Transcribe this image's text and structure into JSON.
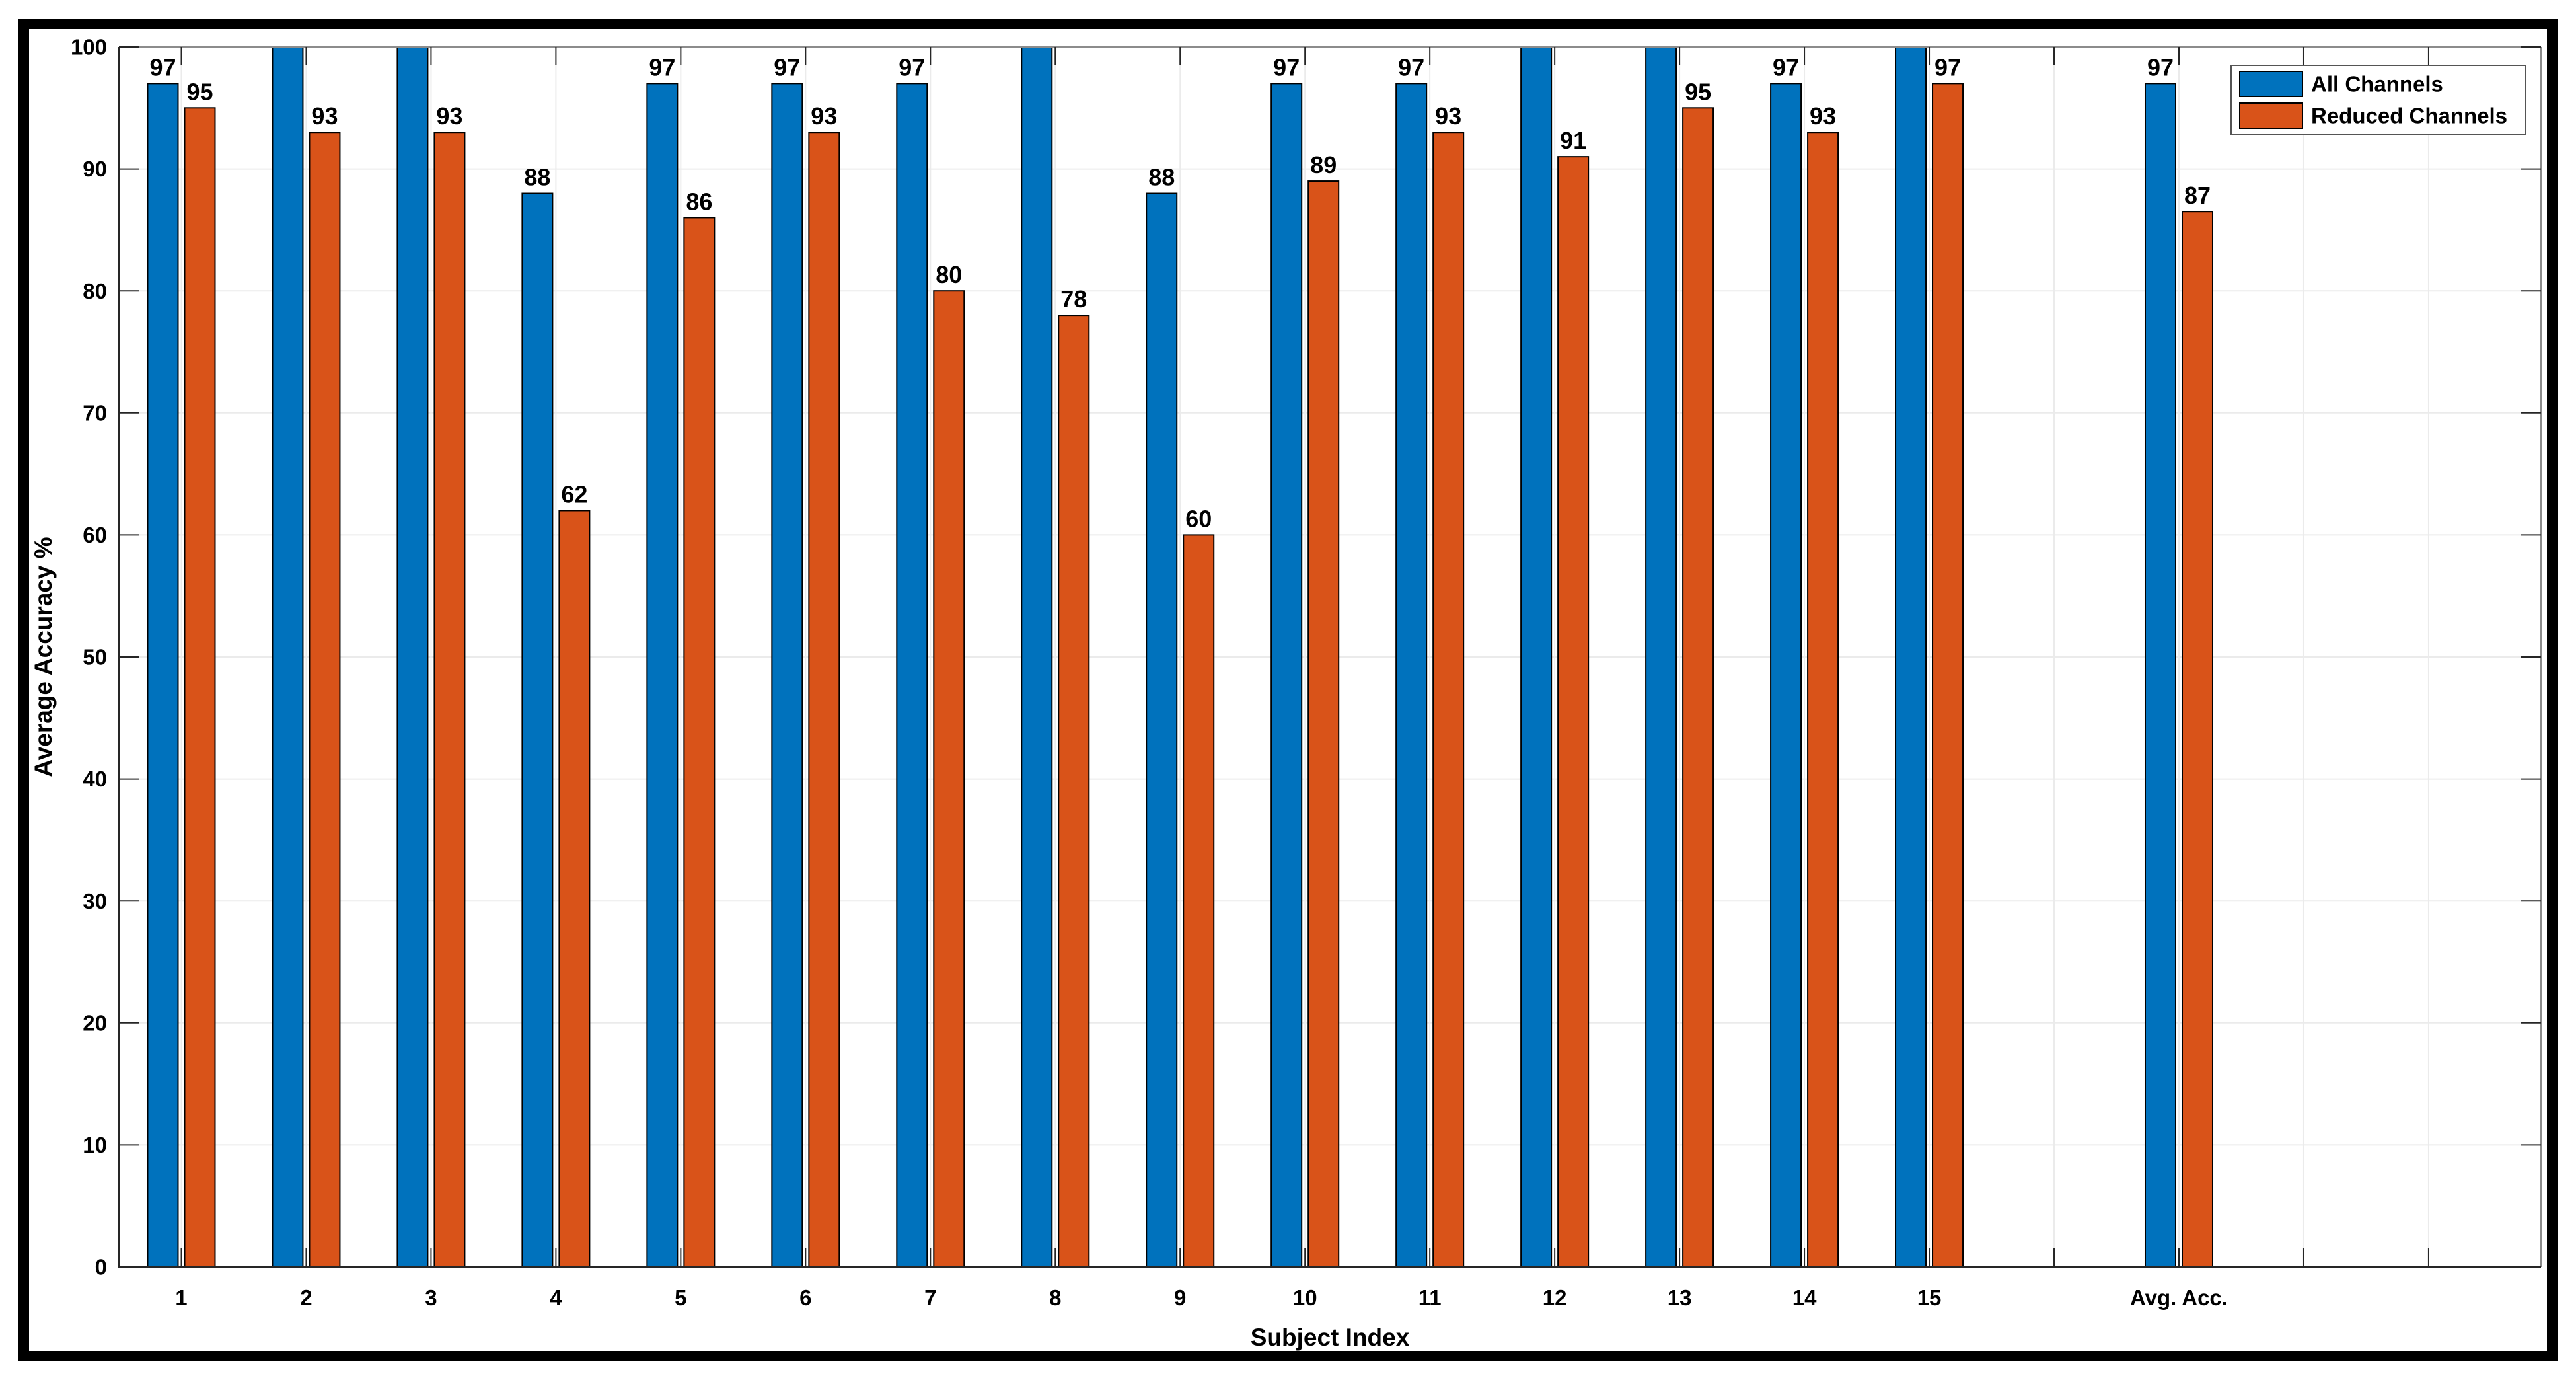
{
  "figure": {
    "background": "#FFFFFF",
    "frame_color": "#000000"
  },
  "chart_data": {
    "type": "bar",
    "title": "",
    "xlabel": "Subject Index",
    "ylabel": "Average Accuracy %",
    "ylim": [
      0,
      100
    ],
    "yticks": [
      "0",
      "10",
      "20",
      "30",
      "40",
      "50",
      "60",
      "70",
      "80",
      "90",
      "100"
    ],
    "grid": true,
    "grid_color": "#EBEBEB",
    "axis_color_dark": "#262626",
    "axis_color_light": "#8C8C8C",
    "bar_edge_color": "#000000",
    "text_color": "#000000",
    "legend_position": "top-right",
    "legend_entries": [
      "All Channels",
      "Reduced Channels"
    ],
    "categories": [
      "1",
      "2",
      "3",
      "4",
      "5",
      "6",
      "7",
      "8",
      "9",
      "10",
      "11",
      "12",
      "13",
      "14",
      "15",
      "Avg. Acc."
    ],
    "category_positions": [
      1,
      2,
      3,
      4,
      5,
      6,
      7,
      8,
      9,
      10,
      11,
      12,
      13,
      14,
      15,
      17
    ],
    "xlim": [
      0.5,
      19.9
    ],
    "series": [
      {
        "name": "All Channels",
        "color": "#0072BD",
        "values": [
          97,
          100,
          100,
          88,
          97,
          97,
          97,
          100,
          88,
          97,
          97,
          100,
          100,
          97,
          100,
          97
        ],
        "bar_labels": [
          "97",
          "",
          "",
          "88",
          "97",
          "97",
          "97",
          "",
          "88",
          "97",
          "97",
          "",
          "",
          "97",
          "",
          "97"
        ]
      },
      {
        "name": "Reduced Channels",
        "color": "#D95319",
        "values": [
          95,
          93,
          93,
          62,
          86,
          93,
          80,
          78,
          60,
          89,
          93,
          91,
          95,
          93,
          97,
          86.5
        ],
        "bar_labels": [
          "95",
          "93",
          "93",
          "62",
          "86",
          "93",
          "80",
          "78",
          "60",
          "89",
          "93",
          "91",
          "95",
          "93",
          "97",
          "87"
        ]
      }
    ]
  }
}
